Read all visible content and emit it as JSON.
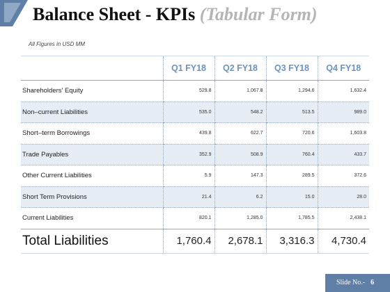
{
  "title": {
    "main": "Balance Sheet - KPIs",
    "sub": "(Tabular Form)"
  },
  "subtitle": "All Figures in USD MM",
  "table": {
    "headers": [
      "Q1 FY18",
      "Q2 FY18",
      "Q3 FY18",
      "Q4 FY18"
    ],
    "rows": [
      {
        "label": "Shareholders' Equity",
        "values": [
          "529.8",
          "1,067.8",
          "1,294.6",
          "1,632.4"
        ]
      },
      {
        "label": "Non–current Liabilities",
        "values": [
          "535.0",
          "548.2",
          "513.5",
          "989.0"
        ]
      },
      {
        "label": "Short–term Borrowings",
        "values": [
          "439.8",
          "622.7",
          "720.6",
          "1,603.8"
        ]
      },
      {
        "label": "Trade Payables",
        "values": [
          "352.9",
          "508.9",
          "760.4",
          "433.7"
        ]
      },
      {
        "label": "Other Current Liabilities",
        "values": [
          "5.9",
          "147.3",
          "289.5",
          "372.6"
        ]
      },
      {
        "label": "Short Term Provisions",
        "values": [
          "21.4",
          "6.2",
          "15.0",
          "28.0"
        ]
      },
      {
        "label": "Current Liabilities",
        "values": [
          "820.1",
          "1,285.0",
          "1,785.5",
          "2,438.1"
        ]
      }
    ],
    "total": {
      "label": "Total Liabilities",
      "values": [
        "1,760.4",
        "2,678.1",
        "3,316.3",
        "4,730.4"
      ]
    }
  },
  "footer": {
    "label": "Slide No.-",
    "number": "6"
  },
  "colors": {
    "accent": "#6a93bf",
    "row_shade": "#e6edf5",
    "footer_bg": "#5f7fa6"
  }
}
